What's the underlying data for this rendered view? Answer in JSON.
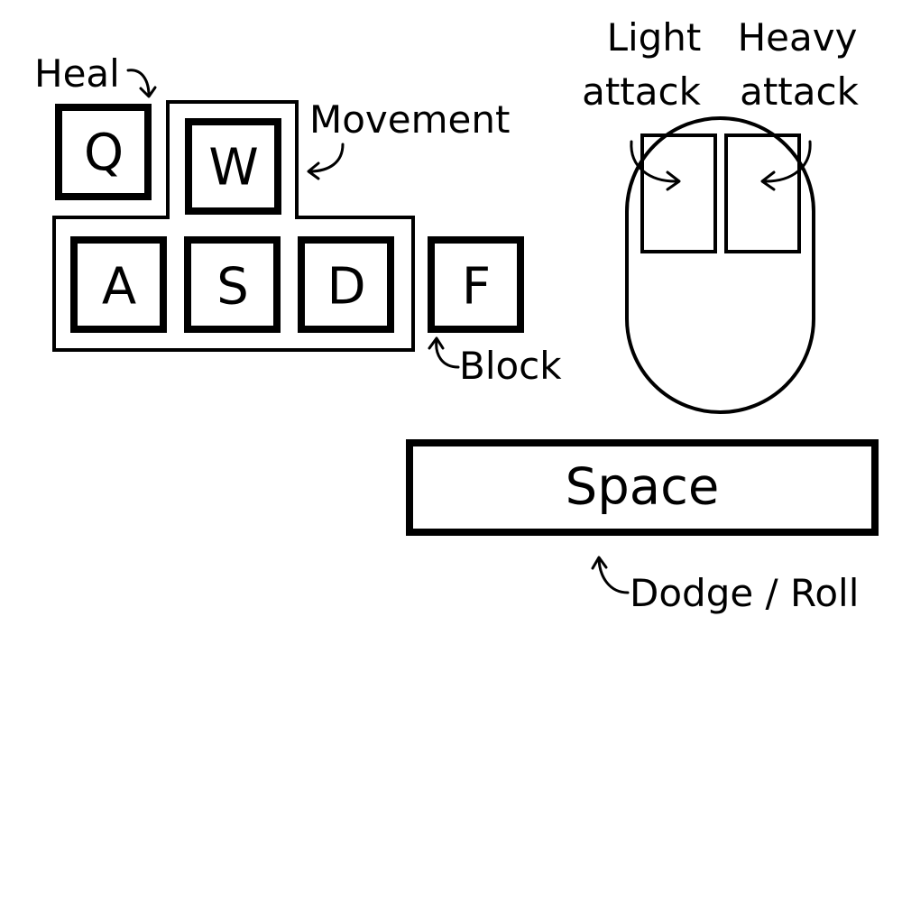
{
  "keys": {
    "q": "Q",
    "w": "W",
    "a": "A",
    "s": "S",
    "d": "D",
    "f": "F",
    "space": "Space"
  },
  "labels": {
    "heal": "Heal",
    "movement": "Movement",
    "block": "Block",
    "light_attack_line1": "Light",
    "light_attack_line2": "attack",
    "heavy_attack_line1": "Heavy",
    "heavy_attack_line2": "attack",
    "dodge_roll": "Dodge / Roll"
  },
  "icons": {
    "mouse": "mouse-icon",
    "pointer": "curved-arrow-icon"
  },
  "colors": {
    "ink": "#000000",
    "background": "#ffffff"
  }
}
